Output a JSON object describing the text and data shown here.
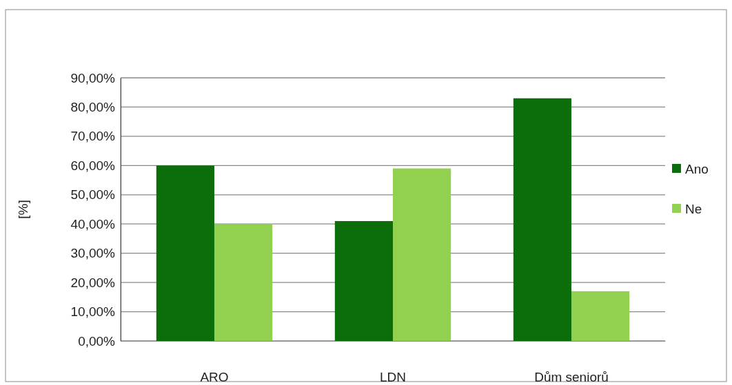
{
  "chart_data": {
    "type": "bar",
    "ylabel": "[%]",
    "categories": [
      "ARO",
      "LDN",
      "Dům seniorů"
    ],
    "series": [
      {
        "name": "Ano",
        "color": "#0b6e0b",
        "values": [
          60,
          41,
          83
        ]
      },
      {
        "name": "Ne",
        "color": "#92d050",
        "values": [
          40,
          59,
          17
        ]
      }
    ],
    "ylim": [
      0,
      90
    ],
    "yticks": [
      {
        "value": 0,
        "label": "0,00%"
      },
      {
        "value": 10,
        "label": "10,00%"
      },
      {
        "value": 20,
        "label": "20,00%"
      },
      {
        "value": 30,
        "label": "30,00%"
      },
      {
        "value": 40,
        "label": "40,00%"
      },
      {
        "value": 50,
        "label": "50,00%"
      },
      {
        "value": 60,
        "label": "60,00%"
      },
      {
        "value": 70,
        "label": "70,00%"
      },
      {
        "value": 80,
        "label": "80,00%"
      },
      {
        "value": 90,
        "label": "90,00%"
      }
    ],
    "grid": "y",
    "legend": "right"
  }
}
